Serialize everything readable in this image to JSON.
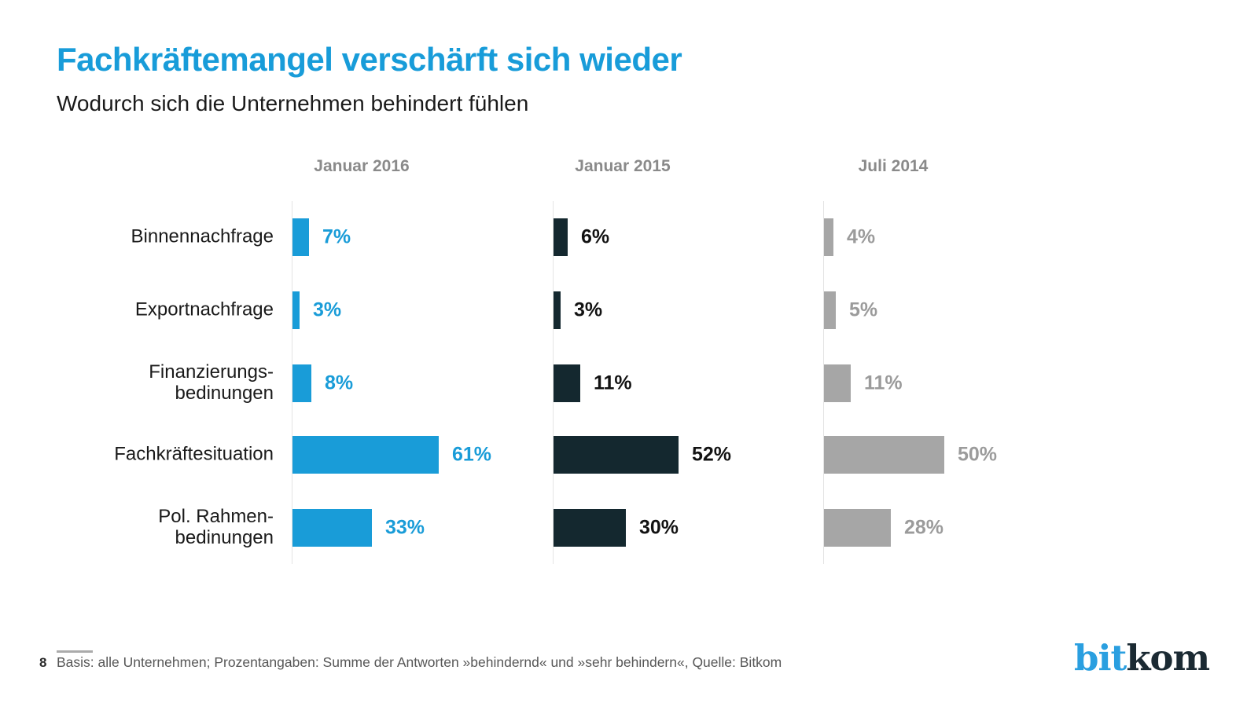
{
  "page": {
    "title": "Fachkräftemangel verschärft sich wieder",
    "subtitle": "Wodurch sich die Unternehmen behindert fühlen",
    "footer": {
      "page_number": "8",
      "note": "Basis: alle Unternehmen; Prozentangaben: Summe der Antworten »behindernd« und »sehr behindern«, Quelle: Bitkom"
    },
    "logo": {
      "part1": "bit",
      "part2": "kom"
    }
  },
  "colors": {
    "title_blue": "#189cd9",
    "axis_line": "#e4e4e4",
    "column_header_gray": "#8a8a8a",
    "category_label": "#1a1a1a",
    "footnote_gray": "#575757",
    "logo_blue": "#2a9fe0",
    "logo_dark": "#1b2a33"
  },
  "chart_data": {
    "type": "bar",
    "orientation": "horizontal",
    "title": "Fachkräftemangel verschärft sich wieder",
    "subtitle": "Wodurch sich die Unternehmen behindert fühlen",
    "categories": [
      "Binnennachfrage",
      "Exportnachfrage",
      "Finanzierungs-\nbedinungen",
      "Fachkräftesituation",
      "Pol. Rahmen-\nbedinungen"
    ],
    "series": [
      {
        "name": "Januar 2016",
        "bar_color": "#199cd8",
        "value_label_color": "#199cd8",
        "values": [
          7,
          3,
          8,
          61,
          33
        ]
      },
      {
        "name": "Januar 2015",
        "bar_color": "#14282f",
        "value_label_color": "#121212",
        "values": [
          6,
          3,
          11,
          52,
          30
        ]
      },
      {
        "name": "Juli 2014",
        "bar_color": "#a6a6a6",
        "value_label_color": "#9b9b9b",
        "values": [
          4,
          5,
          11,
          50,
          28
        ]
      }
    ],
    "value_suffix": "%",
    "xlim": [
      0,
      100
    ],
    "grid": "vertical baseline per series group",
    "legend_position": "column headers above each group"
  }
}
